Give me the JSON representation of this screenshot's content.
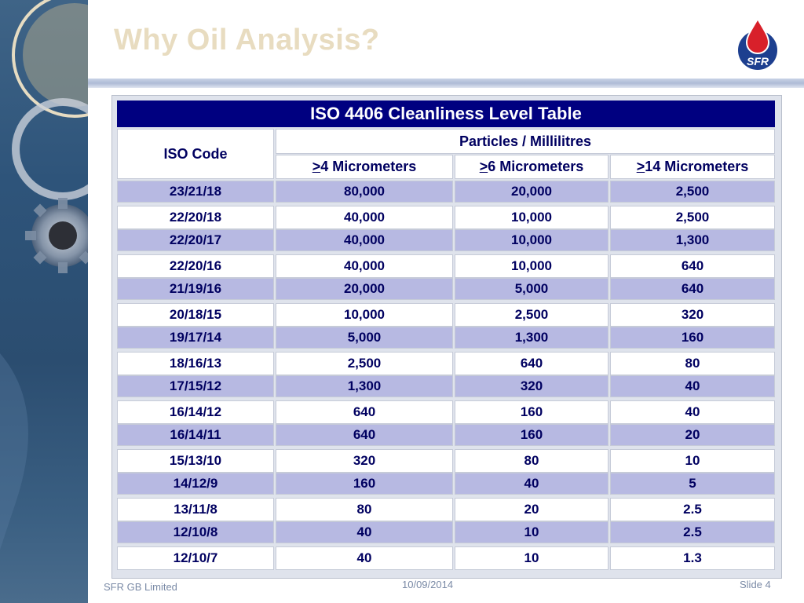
{
  "slide": {
    "title": "Why Oil Analysis?",
    "logo_text": "SFR",
    "footer_left": "SFR GB Limited",
    "footer_center": "10/09/2014",
    "footer_right": "Slide 4"
  },
  "table": {
    "title": "ISO 4406 Cleanliness Level Table",
    "iso_code_header": "ISO Code",
    "particles_header": "Particles / Millilitres",
    "sub_headers": [
      ">4 Micrometers",
      ">6 Micrometers",
      ">14 Micrometers"
    ],
    "rows": [
      [
        "23/21/18",
        "80,000",
        "20,000",
        "2,500"
      ],
      [
        "22/20/18",
        "40,000",
        "10,000",
        "2,500"
      ],
      [
        "22/20/17",
        "40,000",
        "10,000",
        "1,300"
      ],
      [
        "22/20/16",
        "40,000",
        "10,000",
        "640"
      ],
      [
        "21/19/16",
        "20,000",
        "5,000",
        "640"
      ],
      [
        "20/18/15",
        "10,000",
        "2,500",
        "320"
      ],
      [
        "19/17/14",
        "5,000",
        "1,300",
        "160"
      ],
      [
        "18/16/13",
        "2,500",
        "640",
        "80"
      ],
      [
        "17/15/12",
        "1,300",
        "320",
        "40"
      ],
      [
        "16/14/12",
        "640",
        "160",
        "40"
      ],
      [
        "16/14/11",
        "640",
        "160",
        "20"
      ],
      [
        "15/13/10",
        "320",
        "80",
        "10"
      ],
      [
        "14/12/9",
        "160",
        "40",
        "5"
      ],
      [
        "13/11/8",
        "80",
        "20",
        "2.5"
      ],
      [
        "12/10/8",
        "40",
        "10",
        "2.5"
      ],
      [
        "12/10/7",
        "40",
        "10",
        "1.3"
      ]
    ]
  },
  "colors": {
    "header_bg": "#000080",
    "row_highlight": "#b7b9e2",
    "text": "#000060",
    "title_text": "#e8dcc0"
  }
}
